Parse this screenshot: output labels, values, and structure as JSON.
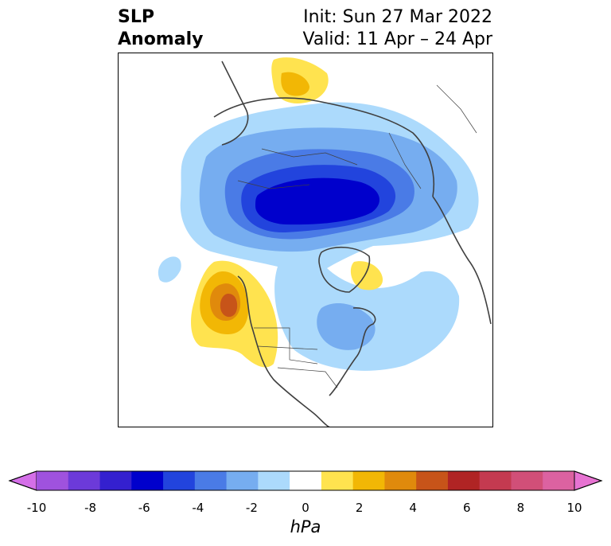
{
  "title": {
    "left_line1": "SLP",
    "left_line2": "Anomaly",
    "right_line1": "Init: Sun 27 Mar 2022",
    "right_line2": "Valid: 11 Apr – 24 Apr"
  },
  "map": {
    "projection": "north-polar-stereographic",
    "field": "sea level pressure anomaly"
  },
  "colorbar": {
    "unit": "hPa",
    "ticks": [
      "-10",
      "-8",
      "-6",
      "-4",
      "-2",
      "0",
      "2",
      "4",
      "6",
      "8",
      "10"
    ],
    "levels": [
      -10,
      -9,
      -8,
      -7,
      -6,
      -5,
      -4,
      -3,
      -2,
      -1,
      1,
      2,
      3,
      4,
      5,
      6,
      7,
      8,
      9,
      10
    ],
    "colors": [
      "#d46fe8",
      "#9f52de",
      "#6c3ad9",
      "#3420cf",
      "#0000cc",
      "#2244dd",
      "#4a7be6",
      "#76adf0",
      "#acdafc",
      "#ffffff",
      "#ffe34f",
      "#f2b705",
      "#e08a0c",
      "#c75419",
      "#b02424",
      "#c43a50",
      "#d14f78",
      "#dc62a1",
      "#e773d2"
    ],
    "extend": "both"
  },
  "colors": {
    "low_light": "#acdafc",
    "low_mid": "#76adf0",
    "low_deep": "#0000cc",
    "high_light": "#ffe34f",
    "high_mid": "#f2b705",
    "high_deep": "#c75419"
  }
}
